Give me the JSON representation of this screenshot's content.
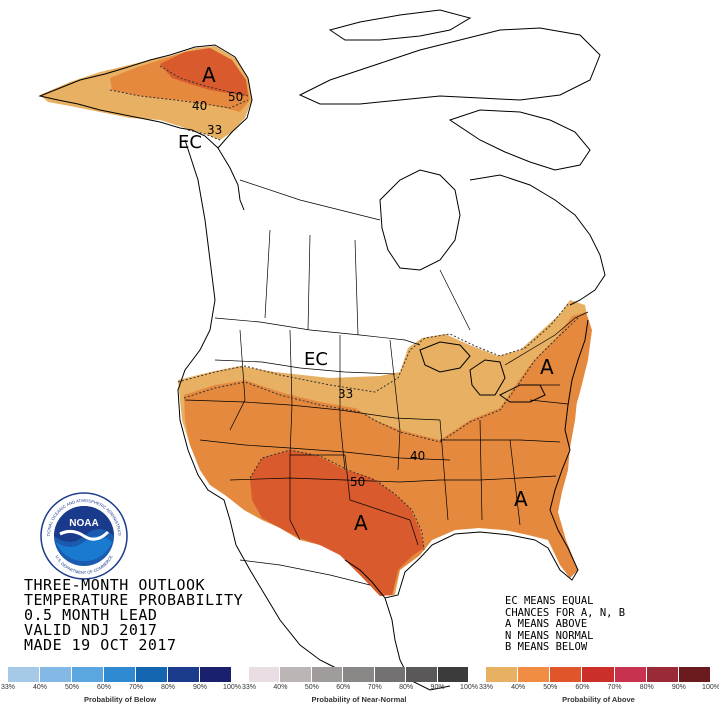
{
  "title_lines": [
    "THREE-MONTH OUTLOOK",
    "TEMPERATURE PROBABILITY",
    "0.5 MONTH LEAD",
    "VALID NDJ 2017",
    "MADE 19 OCT 2017"
  ],
  "legend_lines": [
    "EC MEANS EQUAL",
    "CHANCES FOR A, N, B",
    "A MEANS ABOVE",
    "N MEANS NORMAL",
    "B MEANS BELOW"
  ],
  "map_labels": {
    "alaska_a": "A",
    "alaska_50": "50",
    "alaska_40": "40",
    "alaska_33": "33",
    "alaska_ec": "EC",
    "conus_ec": "EC",
    "contour_33": "33",
    "contour_40": "40",
    "contour_50": "50",
    "northeast_a": "A",
    "southeast_a": "A",
    "texas_a": "A"
  },
  "logo": {
    "text": "NOAA",
    "ring_top": "NATIONAL OCEANIC AND ATMOSPHERIC ADMINISTRATION",
    "ring_bottom": "U.S. DEPARTMENT OF COMMERCE"
  },
  "scales": {
    "below": {
      "label": "Probability of Below",
      "ticks": [
        "33%",
        "40%",
        "50%",
        "60%",
        "70%",
        "80%",
        "90%",
        "100%"
      ],
      "colors": [
        "#a6c9e8",
        "#84b9e6",
        "#5ba6df",
        "#2f8ad1",
        "#1466b0",
        "#1b3c8c",
        "#1a1f6e"
      ]
    },
    "normal": {
      "label": "Probability of Near-Normal",
      "ticks": [
        "33%",
        "40%",
        "50%",
        "60%",
        "70%",
        "80%",
        "90%",
        "100%"
      ],
      "colors": [
        "#e8dde2",
        "#bcb5b5",
        "#a09c9c",
        "#8a8787",
        "#737171",
        "#5a5858",
        "#3c3b3b"
      ]
    },
    "above": {
      "label": "Probability of Above",
      "ticks": [
        "33%",
        "40%",
        "50%",
        "60%",
        "70%",
        "80%",
        "90%",
        "100%"
      ],
      "colors": [
        "#e8b062",
        "#f08c44",
        "#e1552b",
        "#cc2f2a",
        "#c7334f",
        "#9a2a35",
        "#6b1a1e"
      ]
    },
    "colors": {
      "above_33_40": "#e8b062",
      "above_40_50": "#e5893f",
      "above_50_60": "#d85a2d"
    }
  }
}
